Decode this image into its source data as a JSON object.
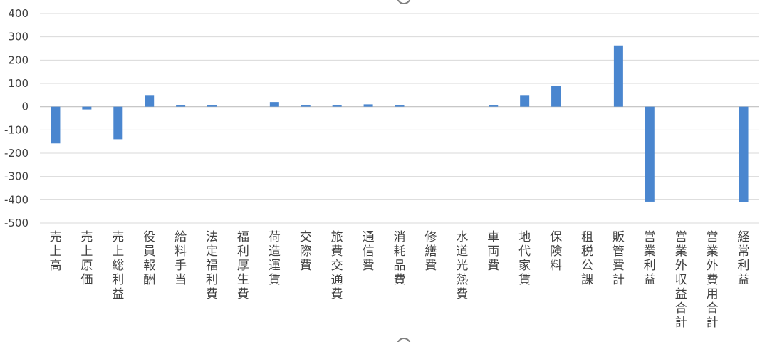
{
  "chart_data": {
    "type": "bar",
    "title": "",
    "xlabel": "",
    "ylabel": "",
    "ylim": [
      -500,
      400
    ],
    "yticks": [
      400,
      300,
      200,
      100,
      0,
      -100,
      -200,
      -300,
      -400,
      -500
    ],
    "grid": true,
    "legend": "none",
    "bar_color": "#4a86cf",
    "categories": [
      "売上高",
      "売上原価",
      "売上総利益",
      "役員報酬",
      "給料手当",
      "法定福利費",
      "福利厚生費",
      "荷造運賃",
      "交際費",
      "旅費交通費",
      "通信費",
      "消耗品費",
      "修繕費",
      "水道光熱費",
      "車両費",
      "地代家賃",
      "保険料",
      "租税公課",
      "販管費計",
      "営業利益",
      "営業外収益合計",
      "営業外費用合計",
      "経常利益"
    ],
    "values": [
      -158,
      -12,
      -140,
      47,
      5,
      5,
      0,
      20,
      5,
      5,
      10,
      5,
      0,
      0,
      5,
      47,
      90,
      0,
      263,
      -408,
      0,
      0,
      -410
    ]
  }
}
